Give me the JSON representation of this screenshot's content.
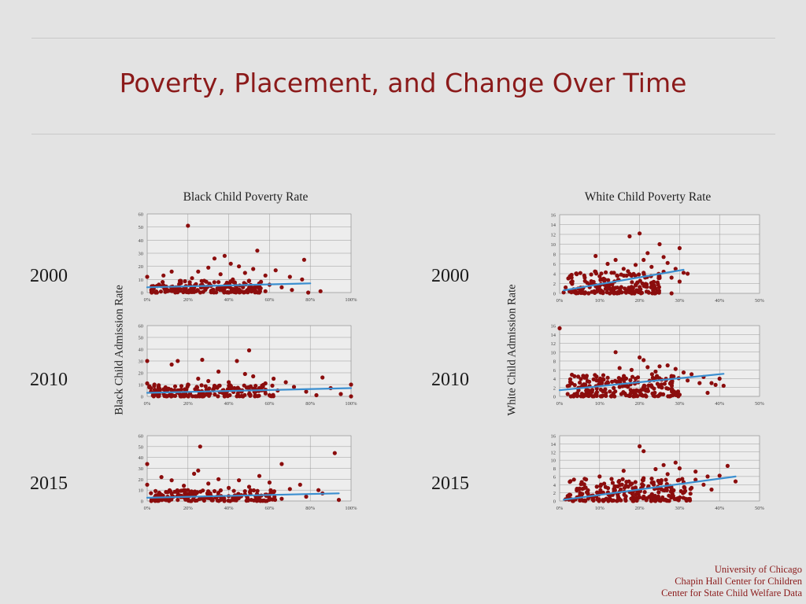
{
  "title": "Poverty, Placement, and Change Over Time",
  "credits": [
    "University of Chicago",
    "Chapin Hall Center for Children",
    "Center for State Child Welfare Data"
  ],
  "colors": {
    "title": "#8b1a1a",
    "points": "#8b0d0d",
    "trend": "#3b8fd0",
    "grid": "#9a9a9a"
  },
  "left_group": {
    "title": "Black Child Poverty Rate",
    "ylabel": "Black Child Admission Rate",
    "year_labels": [
      "2000",
      "2010",
      "2015"
    ]
  },
  "right_group": {
    "title": "White Child Poverty Rate",
    "ylabel": "White Child Admission Rate",
    "year_labels": [
      "2000",
      "2010",
      "2015"
    ]
  },
  "chart_data": [
    {
      "type": "scatter",
      "group": "black",
      "year": "2000",
      "title": "",
      "xlabel": "",
      "ylabel": "",
      "xlim": [
        0,
        1
      ],
      "ylim": [
        0,
        60
      ],
      "grid": true,
      "xticks": [
        "0%",
        "20%",
        "40%",
        "60%",
        "80%",
        "100%"
      ],
      "yticks": [
        "0",
        "10",
        "20",
        "30",
        "40",
        "50",
        "60"
      ],
      "trendline": {
        "x": [
          0,
          0.8
        ],
        "y": [
          4,
          7
        ]
      },
      "points": [
        [
          0.2,
          51
        ],
        [
          0.54,
          32
        ],
        [
          0.38,
          28
        ],
        [
          0.33,
          26
        ],
        [
          0.77,
          25
        ],
        [
          0.41,
          22
        ],
        [
          0.45,
          20
        ],
        [
          0.3,
          19
        ],
        [
          0.52,
          18
        ],
        [
          0.63,
          17
        ],
        [
          0.25,
          16
        ],
        [
          0.12,
          16
        ],
        [
          0.0,
          12
        ],
        [
          0.48,
          15
        ],
        [
          0.36,
          14
        ],
        [
          0.58,
          13
        ],
        [
          0.76,
          10
        ],
        [
          0.7,
          12
        ],
        [
          0.08,
          13
        ],
        [
          0.22,
          11
        ],
        [
          0.28,
          9
        ],
        [
          0.42,
          10
        ],
        [
          0.35,
          8
        ],
        [
          0.16,
          7
        ],
        [
          0.5,
          9
        ],
        [
          0.6,
          6
        ],
        [
          0.05,
          5
        ],
        [
          0.14,
          4
        ],
        [
          0.27,
          6
        ],
        [
          0.39,
          5
        ],
        [
          0.47,
          4
        ],
        [
          0.55,
          3
        ],
        [
          0.66,
          4
        ],
        [
          0.02,
          2
        ],
        [
          0.18,
          3
        ],
        [
          0.32,
          2
        ],
        [
          0.44,
          3
        ],
        [
          0.58,
          1
        ],
        [
          0.71,
          2
        ],
        [
          0.1,
          1
        ],
        [
          0.24,
          1
        ],
        [
          0.4,
          0
        ],
        [
          0.79,
          0
        ],
        [
          0.85,
          1
        ]
      ],
      "cloud": {
        "x": [
          0.01,
          0.56
        ],
        "y": [
          0,
          9
        ],
        "n": 160,
        "seed": 11
      }
    },
    {
      "type": "scatter",
      "group": "black",
      "year": "2010",
      "title": "",
      "xlabel": "",
      "ylabel": "",
      "xlim": [
        0,
        1
      ],
      "ylim": [
        0,
        60
      ],
      "grid": true,
      "xticks": [
        "0%",
        "20%",
        "40%",
        "60%",
        "80%",
        "100%"
      ],
      "yticks": [
        "0",
        "10",
        "20",
        "30",
        "40",
        "50",
        "60"
      ],
      "trendline": {
        "x": [
          0,
          1
        ],
        "y": [
          3,
          7
        ]
      },
      "points": [
        [
          0.5,
          39
        ],
        [
          0.27,
          31
        ],
        [
          0.15,
          30
        ],
        [
          0.0,
          30
        ],
        [
          0.12,
          27
        ],
        [
          0.44,
          30
        ],
        [
          0.35,
          21
        ],
        [
          0.48,
          19
        ],
        [
          0.52,
          17
        ],
        [
          0.86,
          16
        ],
        [
          0.62,
          15
        ],
        [
          0.25,
          15
        ],
        [
          0.3,
          13
        ],
        [
          0.68,
          12
        ],
        [
          0.4,
          12
        ],
        [
          0.58,
          11
        ],
        [
          0.0,
          11
        ],
        [
          0.2,
          10
        ],
        [
          0.33,
          9
        ],
        [
          0.72,
          8
        ],
        [
          0.55,
          7
        ],
        [
          1.0,
          10
        ],
        [
          0.9,
          7
        ],
        [
          0.08,
          6
        ],
        [
          0.45,
          6
        ],
        [
          0.64,
          5
        ],
        [
          0.78,
          4
        ],
        [
          0.95,
          2
        ],
        [
          0.03,
          2
        ],
        [
          0.18,
          3
        ],
        [
          0.37,
          3
        ],
        [
          0.5,
          2
        ],
        [
          0.6,
          1
        ],
        [
          0.83,
          1
        ],
        [
          0.12,
          1
        ],
        [
          0.27,
          0
        ],
        [
          0.47,
          0
        ],
        [
          1.0,
          0
        ]
      ],
      "cloud": {
        "x": [
          0.01,
          0.62
        ],
        "y": [
          0,
          10
        ],
        "n": 170,
        "seed": 23
      }
    },
    {
      "type": "scatter",
      "group": "black",
      "year": "2015",
      "title": "",
      "xlabel": "",
      "ylabel": "",
      "xlim": [
        0,
        1
      ],
      "ylim": [
        0,
        60
      ],
      "grid": true,
      "xticks": [
        "0%",
        "20%",
        "40%",
        "60%",
        "80%",
        "100%"
      ],
      "yticks": [
        "0",
        "10",
        "20",
        "30",
        "40",
        "50",
        "60"
      ],
      "trendline": {
        "x": [
          0,
          0.94
        ],
        "y": [
          3,
          7
        ]
      },
      "points": [
        [
          0.26,
          50
        ],
        [
          0.92,
          44
        ],
        [
          0.0,
          34
        ],
        [
          0.66,
          34
        ],
        [
          0.25,
          28
        ],
        [
          0.23,
          25
        ],
        [
          0.55,
          23
        ],
        [
          0.07,
          22
        ],
        [
          0.35,
          20
        ],
        [
          0.45,
          19
        ],
        [
          0.12,
          19
        ],
        [
          0.6,
          17
        ],
        [
          0.3,
          16
        ],
        [
          0.75,
          15
        ],
        [
          0.0,
          15
        ],
        [
          0.18,
          14
        ],
        [
          0.5,
          13
        ],
        [
          0.4,
          12
        ],
        [
          0.7,
          11
        ],
        [
          0.84,
          10
        ],
        [
          0.2,
          10
        ],
        [
          0.33,
          9
        ],
        [
          0.62,
          8
        ],
        [
          0.86,
          7
        ],
        [
          0.1,
          8
        ],
        [
          0.48,
          6
        ],
        [
          0.56,
          5
        ],
        [
          0.78,
          4
        ],
        [
          0.05,
          4
        ],
        [
          0.28,
          3
        ],
        [
          0.42,
          3
        ],
        [
          0.66,
          2
        ],
        [
          0.94,
          1
        ],
        [
          0.15,
          1
        ],
        [
          0.36,
          1
        ],
        [
          0.58,
          0
        ],
        [
          0.02,
          0
        ]
      ],
      "cloud": {
        "x": [
          0.01,
          0.64
        ],
        "y": [
          0,
          10
        ],
        "n": 170,
        "seed": 37
      }
    },
    {
      "type": "scatter",
      "group": "white",
      "year": "2000",
      "title": "",
      "xlabel": "",
      "ylabel": "",
      "xlim": [
        0,
        0.5
      ],
      "ylim": [
        0,
        16
      ],
      "grid": true,
      "xticks": [
        "0%",
        "10%",
        "20%",
        "30%",
        "40%",
        "50%"
      ],
      "yticks": [
        "0",
        "2",
        "4",
        "6",
        "8",
        "10",
        "12",
        "14",
        "16"
      ],
      "trendline": {
        "x": [
          0.01,
          0.31
        ],
        "y": [
          0.6,
          4.8
        ]
      },
      "points": [
        [
          0.2,
          12.2
        ],
        [
          0.175,
          11.6
        ],
        [
          0.25,
          10
        ],
        [
          0.3,
          9.2
        ],
        [
          0.22,
          8.2
        ],
        [
          0.09,
          7.6
        ],
        [
          0.26,
          7.4
        ],
        [
          0.21,
          6.8
        ],
        [
          0.27,
          6.2
        ],
        [
          0.14,
          6.8
        ],
        [
          0.19,
          5.8
        ],
        [
          0.12,
          6
        ],
        [
          0.23,
          5.4
        ],
        [
          0.29,
          5
        ],
        [
          0.31,
          4.2
        ],
        [
          0.16,
          5
        ],
        [
          0.09,
          4.4
        ],
        [
          0.21,
          4.2
        ],
        [
          0.26,
          4.4
        ],
        [
          0.13,
          4.2
        ],
        [
          0.18,
          3.6
        ],
        [
          0.11,
          3
        ],
        [
          0.28,
          3.2
        ],
        [
          0.03,
          3.2
        ],
        [
          0.015,
          1.2
        ],
        [
          0.01,
          0.2
        ],
        [
          0.28,
          0
        ],
        [
          0.3,
          2.4
        ],
        [
          0.32,
          4
        ]
      ],
      "cloud": {
        "x": [
          0.02,
          0.25
        ],
        "y": [
          0,
          4.5
        ],
        "n": 200,
        "seed": 51
      }
    },
    {
      "type": "scatter",
      "group": "white",
      "year": "2010",
      "title": "",
      "xlabel": "",
      "ylabel": "",
      "xlim": [
        0,
        0.5
      ],
      "ylim": [
        0,
        16
      ],
      "grid": true,
      "xticks": [
        "0%",
        "10%",
        "20%",
        "30%",
        "40%",
        "50%"
      ],
      "yticks": [
        "0",
        "2",
        "4",
        "6",
        "8",
        "10",
        "12",
        "14",
        "16"
      ],
      "trendline": {
        "x": [
          0.0,
          0.41
        ],
        "y": [
          1.4,
          5.1
        ]
      },
      "points": [
        [
          0.0,
          15.4
        ],
        [
          0.14,
          10
        ],
        [
          0.2,
          8.8
        ],
        [
          0.21,
          8.2
        ],
        [
          0.27,
          7
        ],
        [
          0.25,
          6.8
        ],
        [
          0.22,
          6.6
        ],
        [
          0.15,
          6.4
        ],
        [
          0.29,
          6.2
        ],
        [
          0.18,
          6
        ],
        [
          0.31,
          5.4
        ],
        [
          0.24,
          5.6
        ],
        [
          0.33,
          5
        ],
        [
          0.28,
          4.6
        ],
        [
          0.36,
          4.4
        ],
        [
          0.4,
          4
        ],
        [
          0.19,
          4
        ],
        [
          0.11,
          3.8
        ],
        [
          0.32,
          3.6
        ],
        [
          0.38,
          3
        ],
        [
          0.39,
          2.6
        ],
        [
          0.35,
          3
        ],
        [
          0.41,
          2.4
        ],
        [
          0.37,
          0.8
        ],
        [
          0.3,
          0.4
        ]
      ],
      "cloud": {
        "x": [
          0.02,
          0.3
        ],
        "y": [
          0,
          5
        ],
        "n": 220,
        "seed": 67
      }
    },
    {
      "type": "scatter",
      "group": "white",
      "year": "2015",
      "title": "",
      "xlabel": "",
      "ylabel": "",
      "xlim": [
        0,
        0.5
      ],
      "ylim": [
        0,
        16
      ],
      "grid": true,
      "xticks": [
        "0%",
        "10%",
        "20%",
        "30%",
        "40%",
        "50%"
      ],
      "yticks": [
        "0",
        "2",
        "4",
        "6",
        "8",
        "10",
        "12",
        "14",
        "16"
      ],
      "trendline": {
        "x": [
          0.01,
          0.44
        ],
        "y": [
          0.3,
          6
        ]
      },
      "points": [
        [
          0.2,
          13.4
        ],
        [
          0.21,
          12.2
        ],
        [
          0.42,
          8.6
        ],
        [
          0.29,
          9.4
        ],
        [
          0.26,
          8.8
        ],
        [
          0.3,
          8
        ],
        [
          0.24,
          7.8
        ],
        [
          0.34,
          7.2
        ],
        [
          0.4,
          6.2
        ],
        [
          0.37,
          6
        ],
        [
          0.44,
          4.8
        ],
        [
          0.34,
          5.2
        ],
        [
          0.31,
          4.6
        ],
        [
          0.36,
          4
        ],
        [
          0.33,
          3.2
        ],
        [
          0.28,
          3
        ],
        [
          0.38,
          2.8
        ],
        [
          0.16,
          7.4
        ],
        [
          0.1,
          6
        ],
        [
          0.13,
          5.4
        ],
        [
          0.02,
          1.2
        ],
        [
          0.015,
          0.4
        ],
        [
          0.21,
          5.6
        ],
        [
          0.27,
          6.6
        ]
      ],
      "cloud": {
        "x": [
          0.02,
          0.33
        ],
        "y": [
          0,
          5.5
        ],
        "n": 240,
        "seed": 83
      }
    }
  ]
}
